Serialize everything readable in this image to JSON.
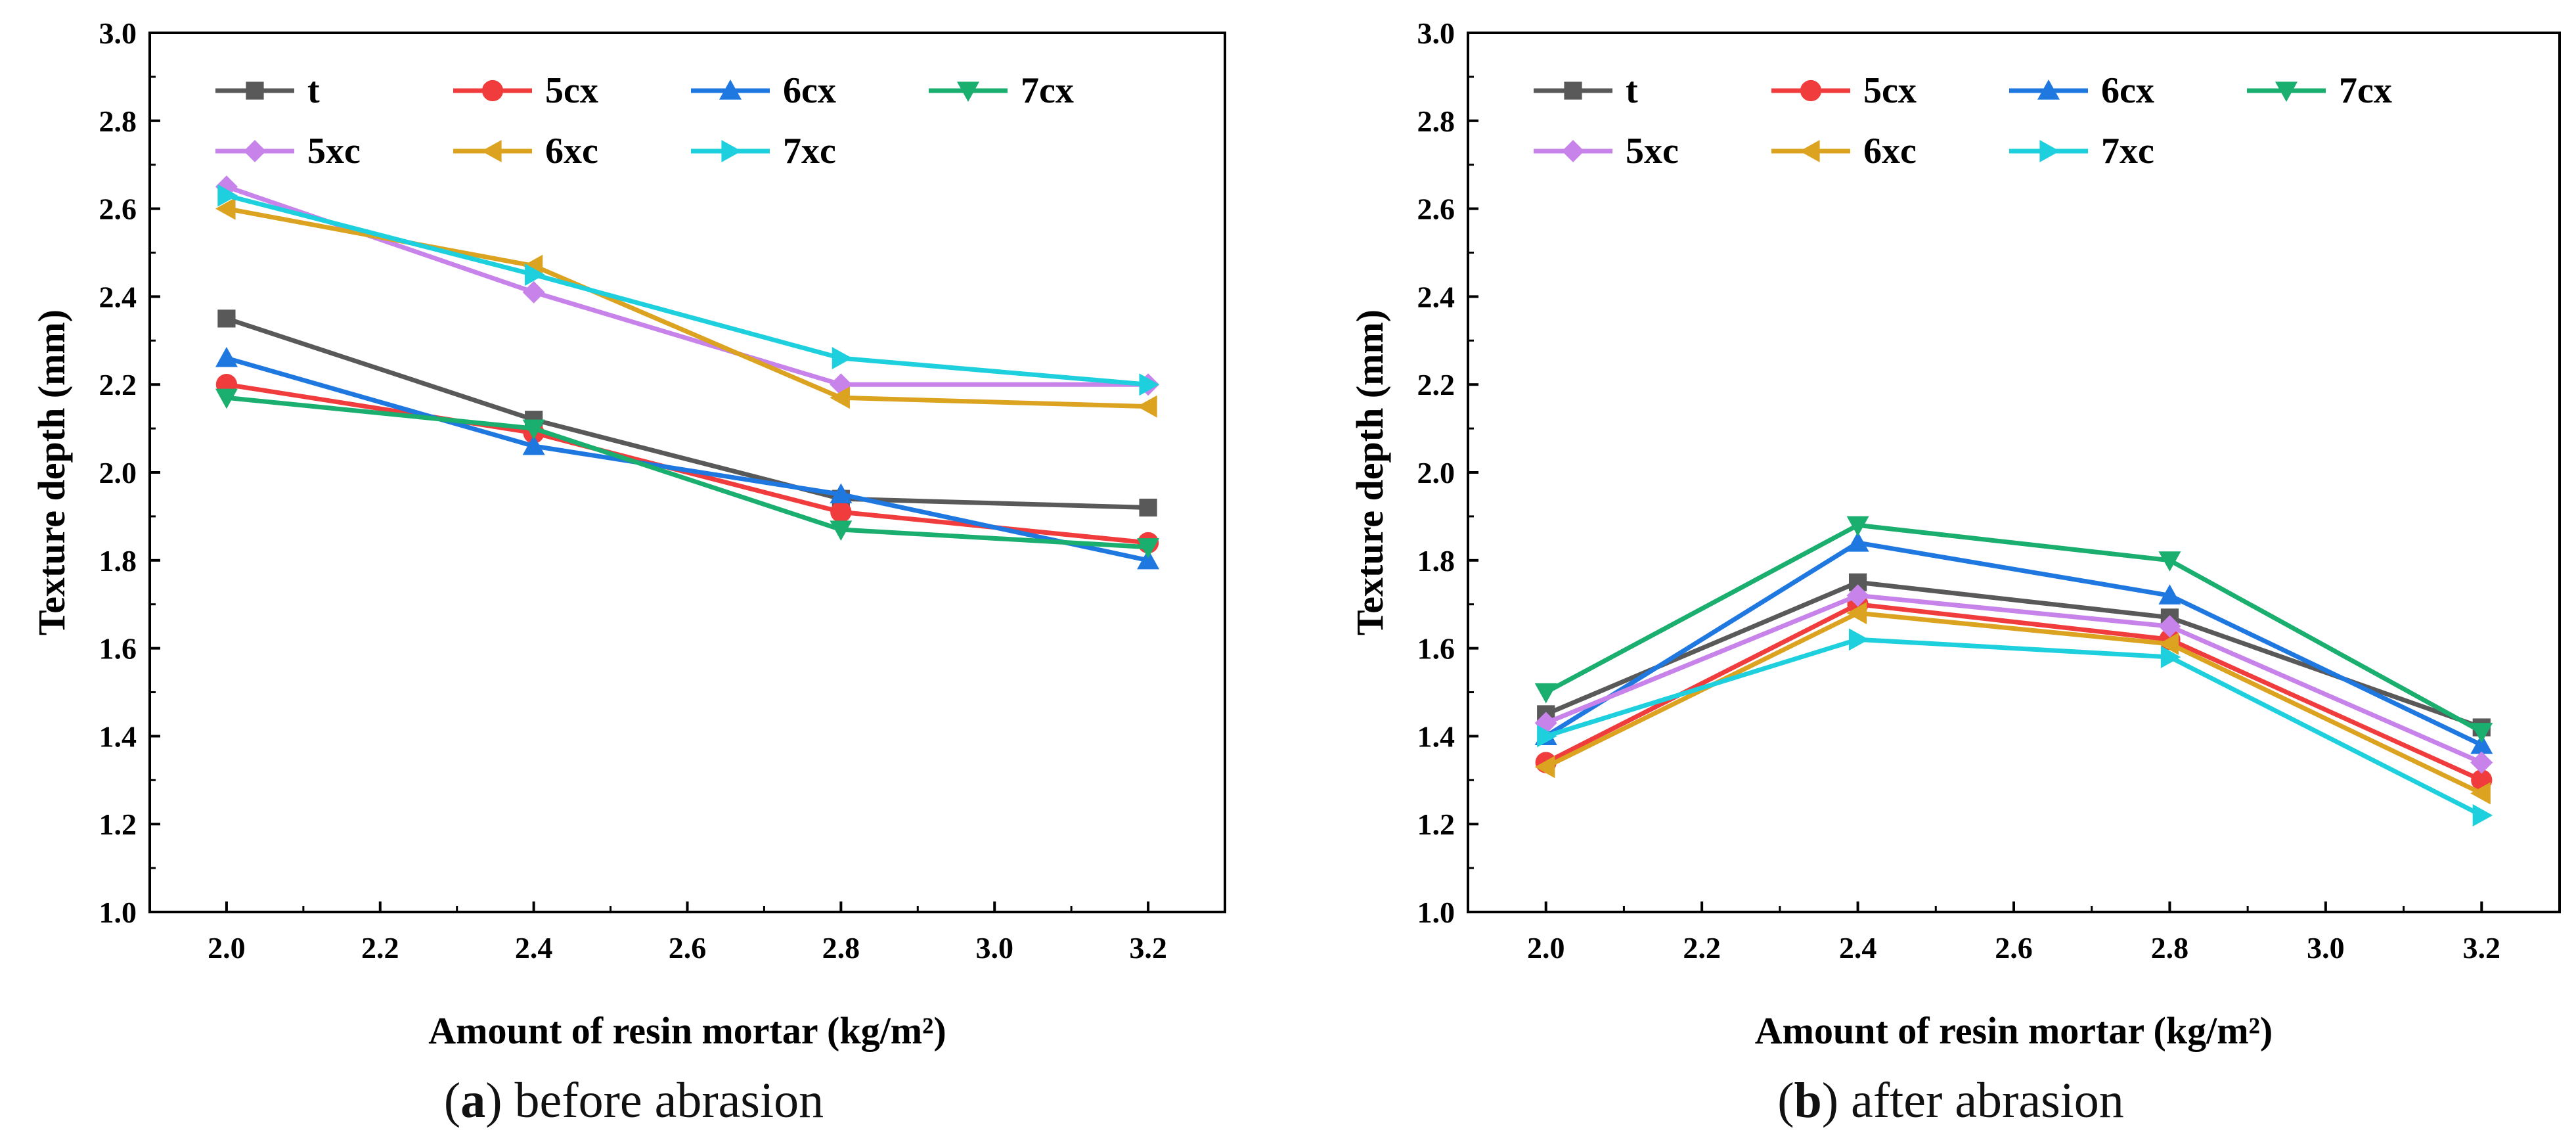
{
  "figure": {
    "captions": [
      {
        "paren_open": "(",
        "letter": "a",
        "paren_close": ")",
        "text": " before abrasion"
      },
      {
        "paren_open": "(",
        "letter": "b",
        "paren_close": ")",
        "text": " after abrasion"
      }
    ]
  },
  "chart_data": [
    {
      "type": "line",
      "title": "",
      "xlabel": "Amount of resin mortar (kg/m²)",
      "ylabel": "Texture depth (mm)",
      "x": [
        2.0,
        2.4,
        2.8,
        3.2
      ],
      "xlim": [
        1.9,
        3.3
      ],
      "ylim": [
        1.0,
        3.0
      ],
      "xticks": [
        "2.0",
        "2.2",
        "2.4",
        "2.6",
        "2.8",
        "3.0",
        "3.2"
      ],
      "yticks": [
        "1.0",
        "1.2",
        "1.4",
        "1.6",
        "1.8",
        "2.0",
        "2.2",
        "2.4",
        "2.6",
        "2.8",
        "3.0"
      ],
      "legend_position": "top-left",
      "series": [
        {
          "name": "t",
          "color": "#595959",
          "marker": "square",
          "values": [
            2.35,
            2.12,
            1.94,
            1.92
          ]
        },
        {
          "name": "5cx",
          "color": "#f03c3c",
          "marker": "circle",
          "values": [
            2.2,
            2.09,
            1.91,
            1.84
          ]
        },
        {
          "name": "6cx",
          "color": "#1f78e0",
          "marker": "triangle-up",
          "values": [
            2.26,
            2.06,
            1.95,
            1.8
          ]
        },
        {
          "name": "7cx",
          "color": "#1aae6f",
          "marker": "triangle-down",
          "values": [
            2.17,
            2.1,
            1.87,
            1.83
          ]
        },
        {
          "name": "5xc",
          "color": "#c783e9",
          "marker": "diamond",
          "values": [
            2.65,
            2.41,
            2.2,
            2.2
          ]
        },
        {
          "name": "6xc",
          "color": "#dba320",
          "marker": "triangle-left",
          "values": [
            2.6,
            2.47,
            2.17,
            2.15
          ]
        },
        {
          "name": "7xc",
          "color": "#1ed0dd",
          "marker": "triangle-right",
          "values": [
            2.63,
            2.45,
            2.26,
            2.2
          ]
        }
      ]
    },
    {
      "type": "line",
      "title": "",
      "xlabel": "Amount of resin mortar (kg/m²)",
      "ylabel": "Texture depth (mm)",
      "x": [
        2.0,
        2.4,
        2.8,
        3.2
      ],
      "xlim": [
        1.9,
        3.3
      ],
      "ylim": [
        1.0,
        3.0
      ],
      "xticks": [
        "2.0",
        "2.2",
        "2.4",
        "2.6",
        "2.8",
        "3.0",
        "3.2"
      ],
      "yticks": [
        "1.0",
        "1.2",
        "1.4",
        "1.6",
        "1.8",
        "2.0",
        "2.2",
        "2.4",
        "2.6",
        "2.8",
        "3.0"
      ],
      "legend_position": "top-left",
      "series": [
        {
          "name": "t",
          "color": "#595959",
          "marker": "square",
          "values": [
            1.45,
            1.75,
            1.67,
            1.42
          ]
        },
        {
          "name": "5cx",
          "color": "#f03c3c",
          "marker": "circle",
          "values": [
            1.34,
            1.7,
            1.62,
            1.3
          ]
        },
        {
          "name": "6cx",
          "color": "#1f78e0",
          "marker": "triangle-up",
          "values": [
            1.4,
            1.84,
            1.72,
            1.38
          ]
        },
        {
          "name": "7cx",
          "color": "#1aae6f",
          "marker": "triangle-down",
          "values": [
            1.5,
            1.88,
            1.8,
            1.41
          ]
        },
        {
          "name": "5xc",
          "color": "#c783e9",
          "marker": "diamond",
          "values": [
            1.43,
            1.72,
            1.65,
            1.34
          ]
        },
        {
          "name": "6xc",
          "color": "#dba320",
          "marker": "triangle-left",
          "values": [
            1.33,
            1.68,
            1.61,
            1.27
          ]
        },
        {
          "name": "7xc",
          "color": "#1ed0dd",
          "marker": "triangle-right",
          "values": [
            1.4,
            1.62,
            1.58,
            1.22
          ]
        }
      ]
    }
  ]
}
